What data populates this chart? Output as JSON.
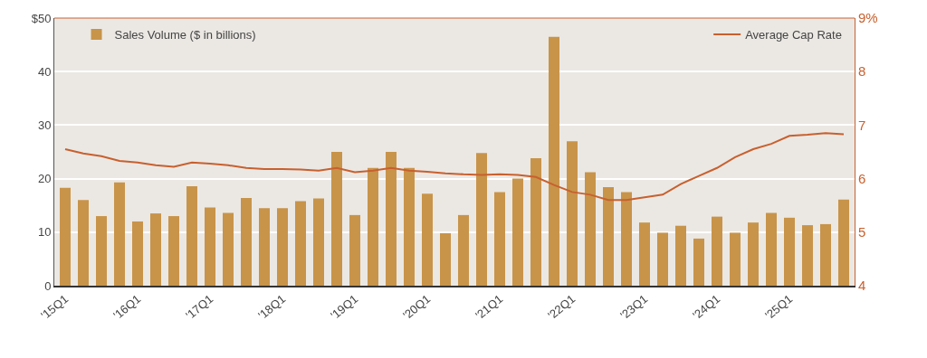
{
  "chart_data": {
    "type": "bar",
    "categories": [
      "'15Q1",
      null,
      null,
      null,
      "'16Q1",
      null,
      null,
      null,
      "'17Q1",
      null,
      null,
      null,
      "'18Q1",
      null,
      null,
      null,
      "'19Q1",
      null,
      null,
      null,
      "'20Q1",
      null,
      null,
      null,
      "'21Q1",
      null,
      null,
      null,
      "'22Q1",
      null,
      null,
      null,
      "'23Q1",
      null,
      null,
      null,
      "'24Q1",
      null,
      null,
      null,
      "'25Q1",
      null,
      null,
      null
    ],
    "series": [
      {
        "name": "Sales Volume ($ in billions)",
        "color": "#c8944a",
        "values": [
          18.3,
          16,
          13,
          19.3,
          12,
          13.5,
          13,
          18.6,
          14.6,
          13.6,
          16.4,
          14.5,
          14.5,
          15.8,
          16.3,
          25,
          13.2,
          22,
          25,
          22,
          17.2,
          9.8,
          13.2,
          24.8,
          17.5,
          20,
          23.8,
          46.5,
          27,
          21.2,
          18.4,
          17.5,
          11.8,
          9.9,
          11.2,
          8.8,
          12.9,
          9.9,
          11.8,
          13.6,
          12.7,
          11.3,
          11.5,
          16.1
        ]
      },
      {
        "name": "Average Cap Rate",
        "type": "line",
        "axis": "y2",
        "color": "#c8602e",
        "values": [
          6.55,
          6.47,
          6.42,
          6.33,
          6.3,
          6.25,
          6.22,
          6.3,
          6.28,
          6.25,
          6.2,
          6.18,
          6.18,
          6.17,
          6.15,
          6.2,
          6.12,
          6.15,
          6.2,
          6.15,
          6.13,
          6.1,
          6.08,
          6.07,
          6.08,
          6.07,
          6.03,
          5.88,
          5.75,
          5.7,
          5.6,
          5.6,
          5.65,
          5.7,
          5.9,
          6.05,
          6.2,
          6.4,
          6.55,
          6.65,
          6.8,
          6.82,
          6.85,
          6.83
        ]
      }
    ],
    "ylim": [
      0,
      50
    ],
    "yticks": [
      0,
      10,
      20,
      30,
      40,
      {
        "value": 50,
        "label": "$50"
      }
    ],
    "y2lim": [
      4,
      9
    ],
    "y2ticks": [
      4,
      5,
      6,
      7,
      8,
      {
        "value": 9,
        "label": "9%"
      }
    ],
    "grid": "y",
    "legend": "top",
    "marker": "none",
    "line_style": "solid"
  }
}
